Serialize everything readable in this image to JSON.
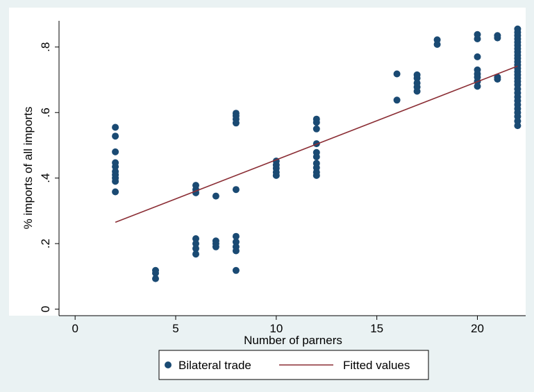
{
  "chart_data": {
    "type": "scatter",
    "title": "",
    "xlabel": "Number of parners",
    "ylabel": "% imports of all imports",
    "xlim": [
      -0.8,
      22.4
    ],
    "ylim": [
      -0.02,
      0.88
    ],
    "x_ticks": [
      0,
      5,
      10,
      15,
      20
    ],
    "x_tick_labels": [
      "0",
      "5",
      "10",
      "15",
      "20"
    ],
    "y_ticks": [
      0,
      0.2,
      0.4,
      0.6,
      0.8
    ],
    "y_tick_labels": [
      "0",
      ".2",
      ".4",
      ".6",
      ".8"
    ],
    "grid": false,
    "legend_position": "bottom",
    "colors": {
      "markers": "#1a4a73",
      "fit_line": "#8b2e35",
      "plot_bg": "#ffffff",
      "outer_bg": "#eaf2f3"
    },
    "series": [
      {
        "name": "Bilateral trade",
        "type": "scatter",
        "points": [
          [
            2,
            0.555
          ],
          [
            2,
            0.528
          ],
          [
            2,
            0.48
          ],
          [
            2,
            0.447
          ],
          [
            2,
            0.435
          ],
          [
            2,
            0.42
          ],
          [
            2,
            0.41
          ],
          [
            2,
            0.4
          ],
          [
            2,
            0.39
          ],
          [
            2,
            0.358
          ],
          [
            4,
            0.118
          ],
          [
            4,
            0.11
          ],
          [
            4,
            0.093
          ],
          [
            6,
            0.378
          ],
          [
            6,
            0.365
          ],
          [
            6,
            0.355
          ],
          [
            6,
            0.215
          ],
          [
            6,
            0.2
          ],
          [
            6,
            0.185
          ],
          [
            6,
            0.168
          ],
          [
            7,
            0.345
          ],
          [
            7,
            0.208
          ],
          [
            7,
            0.2
          ],
          [
            7,
            0.19
          ],
          [
            8,
            0.598
          ],
          [
            8,
            0.59
          ],
          [
            8,
            0.58
          ],
          [
            8,
            0.568
          ],
          [
            8,
            0.365
          ],
          [
            8,
            0.222
          ],
          [
            8,
            0.205
          ],
          [
            8,
            0.19
          ],
          [
            8,
            0.178
          ],
          [
            8,
            0.118
          ],
          [
            10,
            0.452
          ],
          [
            10,
            0.44
          ],
          [
            10,
            0.43
          ],
          [
            10,
            0.418
          ],
          [
            10,
            0.408
          ],
          [
            12,
            0.58
          ],
          [
            12,
            0.57
          ],
          [
            12,
            0.55
          ],
          [
            12,
            0.505
          ],
          [
            12,
            0.478
          ],
          [
            12,
            0.465
          ],
          [
            12,
            0.445
          ],
          [
            12,
            0.432
          ],
          [
            12,
            0.418
          ],
          [
            12,
            0.408
          ],
          [
            16,
            0.718
          ],
          [
            16,
            0.638
          ],
          [
            17,
            0.715
          ],
          [
            17,
            0.705
          ],
          [
            17,
            0.69
          ],
          [
            17,
            0.678
          ],
          [
            17,
            0.665
          ],
          [
            18,
            0.822
          ],
          [
            18,
            0.808
          ],
          [
            20,
            0.838
          ],
          [
            20,
            0.825
          ],
          [
            20,
            0.77
          ],
          [
            20,
            0.73
          ],
          [
            20,
            0.718
          ],
          [
            20,
            0.708
          ],
          [
            20,
            0.695
          ],
          [
            20,
            0.68
          ],
          [
            21,
            0.835
          ],
          [
            21,
            0.828
          ],
          [
            21,
            0.708
          ],
          [
            21,
            0.702
          ],
          [
            22,
            0.855
          ],
          [
            22,
            0.845
          ],
          [
            22,
            0.835
          ],
          [
            22,
            0.825
          ],
          [
            22,
            0.815
          ],
          [
            22,
            0.805
          ],
          [
            22,
            0.795
          ],
          [
            22,
            0.785
          ],
          [
            22,
            0.775
          ],
          [
            22,
            0.765
          ],
          [
            22,
            0.755
          ],
          [
            22,
            0.745
          ],
          [
            22,
            0.735
          ],
          [
            22,
            0.725
          ],
          [
            22,
            0.715
          ],
          [
            22,
            0.705
          ],
          [
            22,
            0.695
          ],
          [
            22,
            0.685
          ],
          [
            22,
            0.672
          ],
          [
            22,
            0.66
          ],
          [
            22,
            0.648
          ],
          [
            22,
            0.636
          ],
          [
            22,
            0.624
          ],
          [
            22,
            0.612
          ],
          [
            22,
            0.6
          ],
          [
            22,
            0.588
          ],
          [
            22,
            0.574
          ],
          [
            22,
            0.56
          ]
        ]
      },
      {
        "name": "Fitted values",
        "type": "line",
        "points": [
          [
            2,
            0.265
          ],
          [
            22,
            0.742
          ]
        ]
      }
    ]
  }
}
